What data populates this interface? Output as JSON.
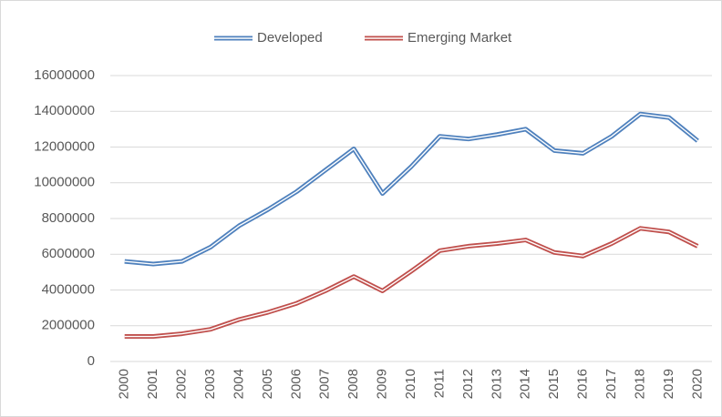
{
  "chart_data": {
    "type": "line",
    "categories": [
      "2000",
      "2001",
      "2002",
      "2003",
      "2004",
      "2005",
      "2006",
      "2007",
      "2008",
      "2009",
      "2010",
      "2011",
      "2012",
      "2013",
      "2014",
      "2015",
      "2016",
      "2017",
      "2018",
      "2019",
      "2020"
    ],
    "series": [
      {
        "name": "Developed",
        "color": "#4f81bd",
        "values": [
          5600000,
          5450000,
          5600000,
          6400000,
          7600000,
          8500000,
          9500000,
          10700000,
          11900000,
          9400000,
          10900000,
          12600000,
          12450000,
          12700000,
          13000000,
          11800000,
          11650000,
          12600000,
          13850000,
          13650000,
          12350000
        ]
      },
      {
        "name": "Emerging Market",
        "color": "#c0504d",
        "values": [
          1400000,
          1400000,
          1550000,
          1800000,
          2350000,
          2750000,
          3250000,
          3950000,
          4750000,
          3950000,
          5050000,
          6200000,
          6450000,
          6600000,
          6800000,
          6100000,
          5900000,
          6600000,
          7450000,
          7250000,
          6450000
        ]
      }
    ],
    "ylim": [
      0,
      16000000
    ],
    "yticks": [
      0,
      2000000,
      4000000,
      6000000,
      8000000,
      10000000,
      12000000,
      14000000,
      16000000
    ],
    "grid": true,
    "legend": "top"
  }
}
